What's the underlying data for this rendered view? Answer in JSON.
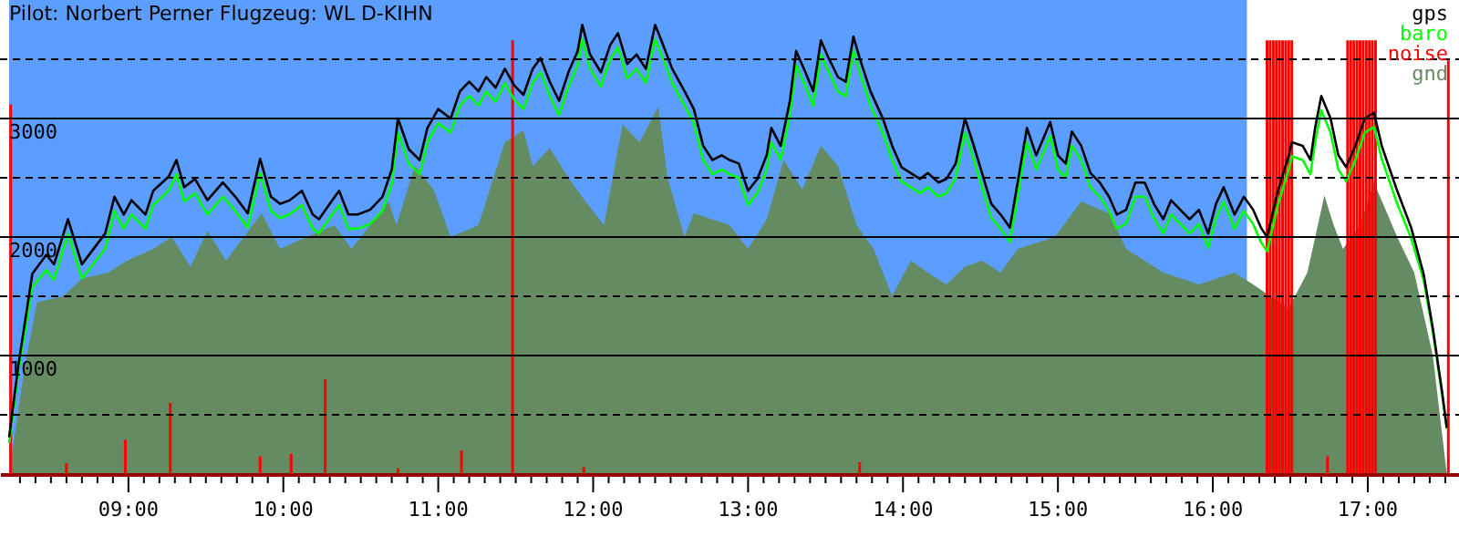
{
  "chart_data": {
    "type": "line",
    "title": "Pilot: Norbert Perner Flugzeug: WL D-KIHN",
    "x": [
      8.23,
      8.29,
      8.38,
      8.47,
      8.52,
      8.61,
      8.7,
      8.85,
      8.91,
      8.97,
      9.02,
      9.11,
      9.16,
      9.26,
      9.31,
      9.36,
      9.43,
      9.51,
      9.61,
      9.69,
      9.77,
      9.85,
      9.92,
      9.98,
      10.04,
      10.12,
      10.19,
      10.23,
      10.3,
      10.36,
      10.42,
      10.48,
      10.56,
      10.64,
      10.7,
      10.74,
      10.81,
      10.88,
      10.93,
      11.0,
      11.08,
      11.14,
      11.2,
      11.26,
      11.31,
      11.37,
      11.43,
      11.49,
      11.55,
      11.61,
      11.66,
      11.72,
      11.78,
      11.84,
      11.9,
      11.93,
      11.98,
      12.05,
      12.11,
      12.16,
      12.22,
      12.28,
      12.34,
      12.4,
      12.44,
      12.51,
      12.59,
      12.65,
      12.71,
      12.77,
      12.83,
      12.88,
      12.94,
      13.0,
      13.06,
      13.12,
      13.15,
      13.21,
      13.27,
      13.31,
      13.37,
      13.42,
      13.47,
      13.52,
      13.58,
      13.63,
      13.68,
      13.72,
      13.79,
      13.87,
      13.93,
      13.99,
      14.05,
      14.11,
      14.16,
      14.23,
      14.28,
      14.34,
      14.4,
      14.45,
      14.51,
      14.57,
      14.63,
      14.69,
      14.74,
      14.8,
      14.86,
      14.95,
      15.0,
      15.05,
      15.09,
      15.15,
      15.21,
      15.27,
      15.33,
      15.38,
      15.44,
      15.5,
      15.56,
      15.62,
      15.68,
      15.73,
      15.79,
      15.85,
      15.91,
      15.97,
      16.02,
      16.07,
      16.14,
      16.2,
      16.26,
      16.31,
      16.35,
      16.42,
      16.49,
      16.51,
      16.58,
      16.63,
      16.66,
      16.7,
      16.76,
      16.81,
      16.86,
      16.92,
      16.98,
      17.04,
      17.09,
      17.19,
      17.28,
      17.36,
      17.42,
      17.48,
      17.51
    ],
    "series": [
      {
        "name": "gnd",
        "type": "area",
        "color": "#658b63",
        "x": [
          8.23,
          8.33,
          8.41,
          8.58,
          8.7,
          8.87,
          8.99,
          9.16,
          9.28,
          9.4,
          9.51,
          9.63,
          9.86,
          9.98,
          10.15,
          10.33,
          10.44,
          10.56,
          10.68,
          10.73,
          10.85,
          10.97,
          11.08,
          11.26,
          11.43,
          11.55,
          11.61,
          11.72,
          11.84,
          11.95,
          12.07,
          12.19,
          12.3,
          12.42,
          12.48,
          12.59,
          12.65,
          12.88,
          13.0,
          13.12,
          13.23,
          13.35,
          13.47,
          13.58,
          13.7,
          13.81,
          13.93,
          14.05,
          14.16,
          14.28,
          14.4,
          14.51,
          14.63,
          14.74,
          14.98,
          15.15,
          15.33,
          15.44,
          15.68,
          15.91,
          16.14,
          16.26,
          16.37,
          16.49,
          16.61,
          16.72,
          16.78,
          16.84,
          16.95,
          17.04,
          17.19,
          17.3,
          17.42,
          17.51
        ],
        "values": [
          0,
          900,
          1450,
          1500,
          1650,
          1700,
          1800,
          1900,
          2000,
          1750,
          2050,
          1800,
          2200,
          1900,
          2000,
          2100,
          1900,
          2100,
          2300,
          2100,
          2600,
          2400,
          2000,
          2100,
          2800,
          2900,
          2600,
          2750,
          2500,
          2300,
          2100,
          2950,
          2800,
          3100,
          2500,
          2000,
          2200,
          2100,
          1900,
          2150,
          2650,
          2400,
          2770,
          2600,
          2100,
          1900,
          1500,
          1800,
          1700,
          1600,
          1750,
          1800,
          1700,
          1900,
          2000,
          2300,
          2200,
          1900,
          1700,
          1600,
          1700,
          1600,
          1500,
          1400,
          1700,
          2350,
          2100,
          1900,
          2100,
          2460,
          2000,
          1700,
          1000,
          0
        ]
      },
      {
        "name": "noise",
        "type": "bar",
        "color": "#ff0000",
        "x": [
          8.24,
          8.6,
          8.98,
          9.27,
          9.85,
          10.05,
          10.27,
          10.74,
          11.15,
          11.48,
          11.94,
          13.72,
          16.35,
          16.37,
          16.39,
          16.41,
          16.43,
          16.45,
          16.47,
          16.49,
          16.51,
          16.74,
          16.87,
          16.89,
          16.91,
          16.93,
          16.95,
          16.97,
          16.99,
          17.01,
          17.03,
          17.05,
          17.52
        ],
        "values": [
          3120,
          90,
          290,
          600,
          150,
          170,
          800,
          50,
          200,
          3660,
          60,
          100,
          3660,
          3660,
          3660,
          3660,
          3660,
          3660,
          3660,
          3660,
          3660,
          150,
          3660,
          3660,
          3660,
          3660,
          3660,
          3660,
          3660,
          3660,
          3660,
          3660,
          3490
        ]
      },
      {
        "name": "baro",
        "color": "#00ff00",
        "values": [
          260,
          860,
          1580,
          1720,
          1640,
          2030,
          1650,
          1900,
          2220,
          2070,
          2190,
          2070,
          2270,
          2390,
          2530,
          2300,
          2370,
          2190,
          2340,
          2220,
          2080,
          2540,
          2220,
          2160,
          2190,
          2270,
          2070,
          2030,
          2160,
          2270,
          2070,
          2070,
          2110,
          2220,
          2450,
          2880,
          2620,
          2530,
          2800,
          2960,
          2880,
          3110,
          3190,
          3110,
          3230,
          3140,
          3300,
          3160,
          3080,
          3300,
          3390,
          3190,
          3030,
          3270,
          3450,
          3670,
          3420,
          3270,
          3500,
          3600,
          3340,
          3420,
          3300,
          3670,
          3540,
          3300,
          3110,
          2960,
          2650,
          2530,
          2570,
          2530,
          2500,
          2270,
          2370,
          2570,
          2800,
          2650,
          3030,
          3450,
          3270,
          3110,
          3540,
          3390,
          3230,
          3190,
          3570,
          3390,
          3110,
          2880,
          2650,
          2470,
          2420,
          2370,
          2420,
          2340,
          2370,
          2500,
          2880,
          2680,
          2420,
          2160,
          2070,
          1960,
          2340,
          2800,
          2570,
          2850,
          2570,
          2500,
          2770,
          2650,
          2420,
          2340,
          2220,
          2070,
          2110,
          2340,
          2340,
          2160,
          2030,
          2190,
          2110,
          2030,
          2110,
          1910,
          2160,
          2300,
          2070,
          2220,
          2110,
          1960,
          1880,
          2270,
          2570,
          2680,
          2650,
          2530,
          2800,
          3070,
          2880,
          2570,
          2470,
          2650,
          2880,
          2930,
          2660,
          2280,
          1990,
          1640,
          1200,
          670,
          380
        ]
      },
      {
        "name": "gps",
        "color": "#000000",
        "values": [
          310,
          920,
          1690,
          1850,
          1770,
          2150,
          1770,
          2030,
          2340,
          2190,
          2310,
          2190,
          2390,
          2510,
          2650,
          2420,
          2490,
          2310,
          2460,
          2340,
          2200,
          2660,
          2340,
          2280,
          2310,
          2390,
          2190,
          2150,
          2280,
          2390,
          2190,
          2190,
          2230,
          2340,
          2570,
          3000,
          2740,
          2650,
          2920,
          3080,
          3000,
          3230,
          3310,
          3230,
          3350,
          3260,
          3420,
          3280,
          3200,
          3420,
          3510,
          3310,
          3150,
          3390,
          3570,
          3790,
          3540,
          3390,
          3620,
          3720,
          3460,
          3540,
          3420,
          3790,
          3660,
          3420,
          3230,
          3080,
          2770,
          2650,
          2690,
          2650,
          2620,
          2390,
          2490,
          2690,
          2920,
          2770,
          3150,
          3570,
          3390,
          3230,
          3660,
          3510,
          3350,
          3310,
          3690,
          3510,
          3230,
          3000,
          2770,
          2590,
          2540,
          2490,
          2540,
          2460,
          2490,
          2620,
          3000,
          2800,
          2540,
          2280,
          2190,
          2080,
          2460,
          2920,
          2690,
          2970,
          2690,
          2620,
          2890,
          2770,
          2540,
          2460,
          2340,
          2190,
          2230,
          2460,
          2460,
          2280,
          2150,
          2310,
          2230,
          2150,
          2230,
          2030,
          2280,
          2420,
          2190,
          2340,
          2230,
          2080,
          2000,
          2390,
          2690,
          2800,
          2770,
          2650,
          2920,
          3190,
          3000,
          2690,
          2590,
          2770,
          3000,
          3050,
          2770,
          2390,
          2080,
          1690,
          1230,
          690,
          390
        ]
      }
    ],
    "xlim": [
      8.23,
      17.53
    ],
    "xticks": [
      {
        "value": 8.3,
        "label": null
      },
      {
        "value": 8.4,
        "label": null
      },
      {
        "value": 8.5,
        "label": null
      },
      {
        "value": 8.6,
        "label": null
      },
      {
        "value": 8.7,
        "label": null
      },
      {
        "value": 8.8,
        "label": null
      },
      {
        "value": 8.9,
        "label": null
      },
      {
        "value": 9,
        "label": "09:00"
      },
      {
        "value": 9.1,
        "label": null
      },
      {
        "value": 9.2,
        "label": null
      },
      {
        "value": 9.3,
        "label": null
      },
      {
        "value": 9.4,
        "label": null
      },
      {
        "value": 9.5,
        "label": null
      },
      {
        "value": 9.6,
        "label": null
      },
      {
        "value": 9.7,
        "label": null
      },
      {
        "value": 9.8,
        "label": null
      },
      {
        "value": 9.9,
        "label": null
      },
      {
        "value": 10,
        "label": "10:00"
      },
      {
        "value": 10.1,
        "label": null
      },
      {
        "value": 10.2,
        "label": null
      },
      {
        "value": 10.3,
        "label": null
      },
      {
        "value": 10.4,
        "label": null
      },
      {
        "value": 10.5,
        "label": null
      },
      {
        "value": 10.6,
        "label": null
      },
      {
        "value": 10.7,
        "label": null
      },
      {
        "value": 10.8,
        "label": null
      },
      {
        "value": 10.9,
        "label": null
      },
      {
        "value": 11,
        "label": "11:00"
      },
      {
        "value": 11.1,
        "label": null
      },
      {
        "value": 11.2,
        "label": null
      },
      {
        "value": 11.3,
        "label": null
      },
      {
        "value": 11.4,
        "label": null
      },
      {
        "value": 11.5,
        "label": null
      },
      {
        "value": 11.6,
        "label": null
      },
      {
        "value": 11.7,
        "label": null
      },
      {
        "value": 11.8,
        "label": null
      },
      {
        "value": 11.9,
        "label": null
      },
      {
        "value": 12,
        "label": "12:00"
      },
      {
        "value": 12.1,
        "label": null
      },
      {
        "value": 12.2,
        "label": null
      },
      {
        "value": 12.3,
        "label": null
      },
      {
        "value": 12.4,
        "label": null
      },
      {
        "value": 12.5,
        "label": null
      },
      {
        "value": 12.6,
        "label": null
      },
      {
        "value": 12.7,
        "label": null
      },
      {
        "value": 12.8,
        "label": null
      },
      {
        "value": 12.9,
        "label": null
      },
      {
        "value": 13,
        "label": "13:00"
      },
      {
        "value": 13.1,
        "label": null
      },
      {
        "value": 13.2,
        "label": null
      },
      {
        "value": 13.3,
        "label": null
      },
      {
        "value": 13.4,
        "label": null
      },
      {
        "value": 13.5,
        "label": null
      },
      {
        "value": 13.6,
        "label": null
      },
      {
        "value": 13.7,
        "label": null
      },
      {
        "value": 13.8,
        "label": null
      },
      {
        "value": 13.9,
        "label": null
      },
      {
        "value": 14,
        "label": "14:00"
      },
      {
        "value": 14.1,
        "label": null
      },
      {
        "value": 14.2,
        "label": null
      },
      {
        "value": 14.3,
        "label": null
      },
      {
        "value": 14.4,
        "label": null
      },
      {
        "value": 14.5,
        "label": null
      },
      {
        "value": 14.6,
        "label": null
      },
      {
        "value": 14.7,
        "label": null
      },
      {
        "value": 14.8,
        "label": null
      },
      {
        "value": 14.9,
        "label": null
      },
      {
        "value": 15,
        "label": "15:00"
      },
      {
        "value": 15.1,
        "label": null
      },
      {
        "value": 15.2,
        "label": null
      },
      {
        "value": 15.3,
        "label": null
      },
      {
        "value": 15.4,
        "label": null
      },
      {
        "value": 15.5,
        "label": null
      },
      {
        "value": 15.6,
        "label": null
      },
      {
        "value": 15.7,
        "label": null
      },
      {
        "value": 15.8,
        "label": null
      },
      {
        "value": 15.9,
        "label": null
      },
      {
        "value": 16,
        "label": "16:00"
      },
      {
        "value": 16.1,
        "label": null
      },
      {
        "value": 16.2,
        "label": null
      },
      {
        "value": 16.3,
        "label": null
      },
      {
        "value": 16.4,
        "label": null
      },
      {
        "value": 16.5,
        "label": null
      },
      {
        "value": 16.6,
        "label": null
      },
      {
        "value": 16.7,
        "label": null
      },
      {
        "value": 16.8,
        "label": null
      },
      {
        "value": 16.9,
        "label": null
      },
      {
        "value": 17,
        "label": "17:00"
      },
      {
        "value": 17.1,
        "label": null
      },
      {
        "value": 17.2,
        "label": null
      },
      {
        "value": 17.3,
        "label": null
      },
      {
        "value": 17.4,
        "label": null
      },
      {
        "value": 17.5,
        "label": null
      }
    ],
    "ylim": [
      0,
      4000
    ],
    "yticks": [
      {
        "value": 500,
        "label": null
      },
      1000,
      {
        "value": 1500,
        "label": null
      },
      2000,
      {
        "value": 2500,
        "label": null
      },
      3000,
      {
        "value": 3500,
        "label": null
      }
    ],
    "bands": [
      {
        "axis": "x",
        "from": 8.23,
        "to": 16.22,
        "color": "#5b9eff"
      }
    ],
    "grid": "y",
    "legend": "top right"
  }
}
